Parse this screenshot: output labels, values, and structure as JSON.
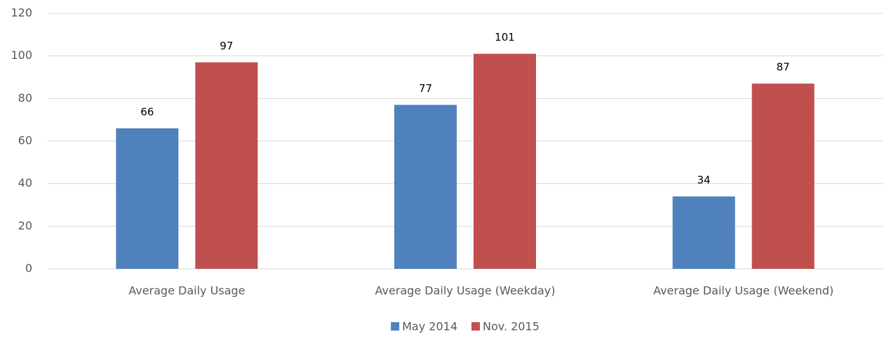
{
  "chart_data": {
    "type": "bar",
    "categories": [
      "Average Daily Usage",
      "Average Daily Usage (Weekday)",
      "Average Daily Usage (Weekend)"
    ],
    "series": [
      {
        "name": "May 2014",
        "color": "#4f81bd",
        "values": [
          66,
          77,
          34
        ]
      },
      {
        "name": "Nov. 2015",
        "color": "#c0504d",
        "values": [
          97,
          101,
          87
        ]
      }
    ],
    "ylim": [
      0,
      120
    ],
    "yticks": [
      0,
      20,
      40,
      60,
      80,
      100,
      120
    ],
    "grid": true,
    "legend": "bottom"
  }
}
